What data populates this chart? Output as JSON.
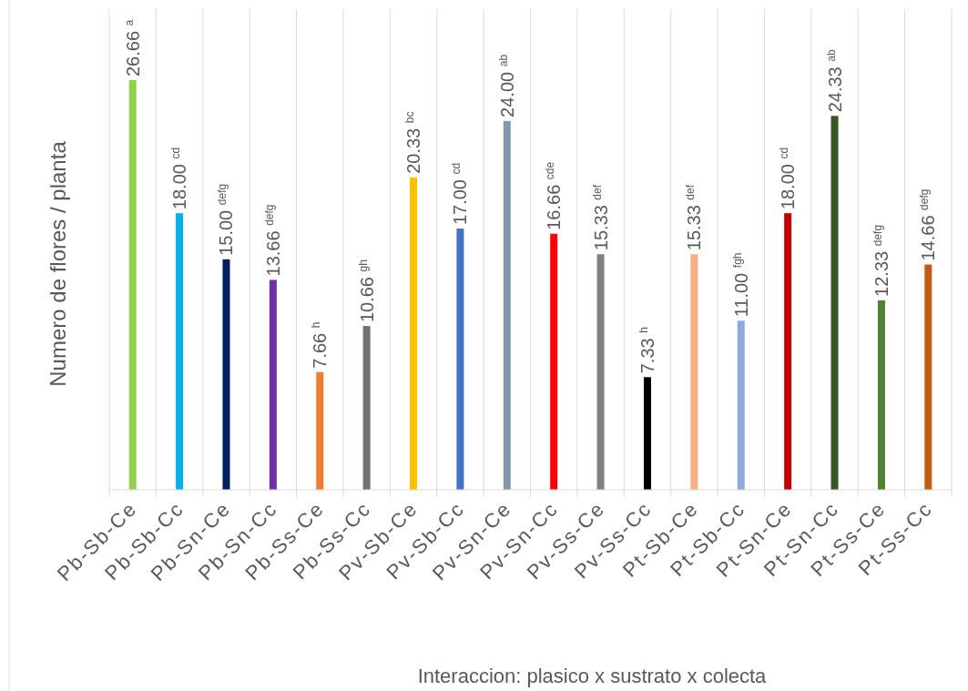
{
  "chart_data": {
    "type": "bar",
    "xlabel": "Interaccion: plasico x sustrato x colecta",
    "ylabel": "Numero de flores / planta",
    "categories": [
      "Pb-Sb-Ce",
      "Pb-Sb-Cc",
      "Pb-Sn-Ce",
      "Pb-Sn-Cc",
      "Pb-Ss-Ce",
      "Pb-Ss-Cc",
      "Pv-Sb-Ce",
      "Pv-Sb-Cc",
      "Pv-Sn-Ce",
      "Pv-Sn-Cc",
      "Pv-Ss-Ce",
      "Pv-Ss-Cc",
      "Pt-Sb-Ce",
      "Pt-Sb-Cc",
      "Pt-Sn-Ce",
      "Pt-Sn-Cc",
      "Pt-Ss-Ce",
      "Pt-Ss-Cc"
    ],
    "values": [
      26.66,
      18.0,
      15.0,
      13.66,
      7.66,
      10.66,
      20.33,
      17.0,
      24.0,
      16.66,
      15.33,
      7.33,
      15.33,
      11.0,
      18.0,
      24.33,
      12.33,
      14.66
    ],
    "colors": [
      "#92d050",
      "#00b0f0",
      "#002060",
      "#7030a0",
      "#ed7d31",
      "#767171",
      "#ffc000",
      "#4472c4",
      "#8497b0",
      "#ff0000",
      "#808080",
      "#000000",
      "#f4b183",
      "#8faadc",
      "#c00000",
      "#375623",
      "#548235",
      "#c55a11"
    ],
    "value_labels": [
      "26.66 $^{a}$",
      "18.00 $^{cd}$",
      "15.00 $^{defg}$",
      "13.66 $^{defg}$",
      "7.66 $^{h}$",
      "10.66 $^{gh}$",
      "20.33 $^{bc}$",
      "17.00 $^{cd}$",
      "24.00 $^{ab}$",
      "16.66 $^{cde}$",
      "15.33 $^{def}$",
      "7.33 $^{h}$",
      "15.33 $^{def}$",
      "11.00 $^{fgh}$",
      "18.00 $^{cd}$",
      "24.33 $^{ab}$",
      "12.33 $^{defg}$",
      "14.66 $^{defg}$"
    ],
    "grid": "x",
    "tick_labels": "x"
  }
}
